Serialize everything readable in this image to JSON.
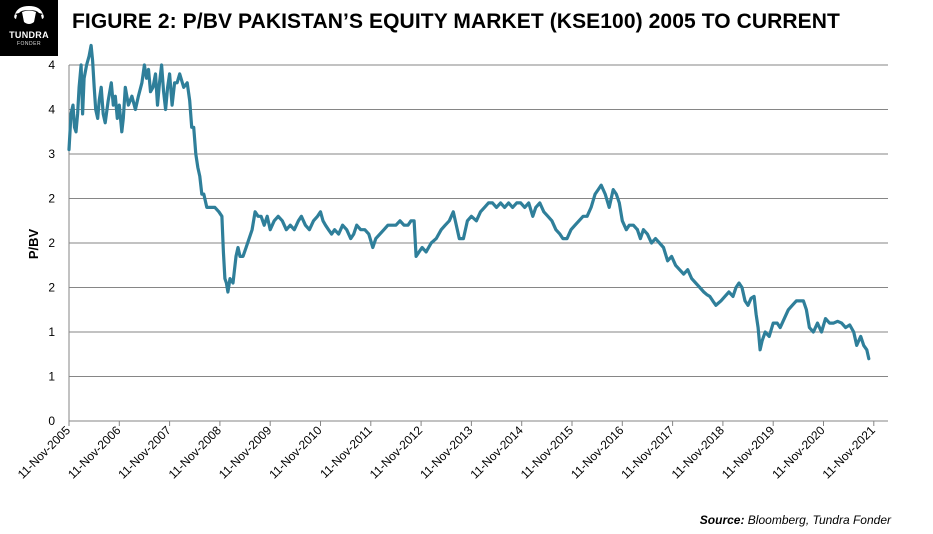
{
  "header": {
    "logo_text": "TUNDRA",
    "logo_subtext": "FONDER",
    "title": "FIGURE 2: P/BV PAKISTAN’S EQUITY MARKET (KSE100) 2005 TO CURRENT"
  },
  "source": {
    "label": "Source:",
    "text": " Bloomberg, Tundra Fonder"
  },
  "colors": {
    "line": "#2f7f9a",
    "grid": "#868686",
    "axis": "#868686",
    "text": "#000000"
  },
  "chart_data": {
    "type": "line",
    "title": "",
    "ylabel": "P/BV",
    "xlabel": "",
    "grid": true,
    "legend": "none",
    "y_tick_labels": [
      "0",
      "1",
      "1",
      "2",
      "2",
      "2",
      "3",
      "4",
      "4"
    ],
    "ylim": [
      0,
      4
    ],
    "x_tick_labels": [
      "11-Nov-2005",
      "11-Nov-2006",
      "11-Nov-2007",
      "11-Nov-2008",
      "11-Nov-2009",
      "11-Nov-2010",
      "11-Nov-2011",
      "11-Nov-2012",
      "11-Nov-2013",
      "11-Nov-2014",
      "11-Nov-2015",
      "11-Nov-2016",
      "11-Nov-2017",
      "11-Nov-2018",
      "11-Nov-2019",
      "11-Nov-2020",
      "11-Nov-2021"
    ],
    "x_unit": "years since 11-Nov-2005",
    "series": [
      {
        "values": [
          [
            0.0,
            3.05
          ],
          [
            0.04,
            3.45
          ],
          [
            0.08,
            3.55
          ],
          [
            0.11,
            3.3
          ],
          [
            0.14,
            3.25
          ],
          [
            0.17,
            3.45
          ],
          [
            0.2,
            3.75
          ],
          [
            0.24,
            4.0
          ],
          [
            0.27,
            3.45
          ],
          [
            0.3,
            3.85
          ],
          [
            0.35,
            4.0
          ],
          [
            0.4,
            4.1
          ],
          [
            0.44,
            4.22
          ],
          [
            0.47,
            4.05
          ],
          [
            0.5,
            3.75
          ],
          [
            0.53,
            3.5
          ],
          [
            0.57,
            3.4
          ],
          [
            0.6,
            3.6
          ],
          [
            0.64,
            3.75
          ],
          [
            0.68,
            3.45
          ],
          [
            0.72,
            3.35
          ],
          [
            0.78,
            3.6
          ],
          [
            0.84,
            3.8
          ],
          [
            0.88,
            3.55
          ],
          [
            0.92,
            3.65
          ],
          [
            0.96,
            3.4
          ],
          [
            1.0,
            3.55
          ],
          [
            1.05,
            3.25
          ],
          [
            1.08,
            3.4
          ],
          [
            1.12,
            3.75
          ],
          [
            1.18,
            3.55
          ],
          [
            1.25,
            3.65
          ],
          [
            1.32,
            3.5
          ],
          [
            1.38,
            3.65
          ],
          [
            1.45,
            3.8
          ],
          [
            1.5,
            4.0
          ],
          [
            1.54,
            3.85
          ],
          [
            1.58,
            3.95
          ],
          [
            1.62,
            3.7
          ],
          [
            1.67,
            3.75
          ],
          [
            1.72,
            3.9
          ],
          [
            1.76,
            3.55
          ],
          [
            1.8,
            3.8
          ],
          [
            1.84,
            4.0
          ],
          [
            1.88,
            3.7
          ],
          [
            1.92,
            3.5
          ],
          [
            1.96,
            3.75
          ],
          [
            2.0,
            3.9
          ],
          [
            2.05,
            3.55
          ],
          [
            2.1,
            3.8
          ],
          [
            2.15,
            3.8
          ],
          [
            2.2,
            3.9
          ],
          [
            2.28,
            3.75
          ],
          [
            2.35,
            3.8
          ],
          [
            2.4,
            3.6
          ],
          [
            2.44,
            3.3
          ],
          [
            2.48,
            3.3
          ],
          [
            2.52,
            3.0
          ],
          [
            2.56,
            2.85
          ],
          [
            2.6,
            2.75
          ],
          [
            2.64,
            2.55
          ],
          [
            2.68,
            2.55
          ],
          [
            2.74,
            2.4
          ],
          [
            2.8,
            2.4
          ],
          [
            2.9,
            2.4
          ],
          [
            2.98,
            2.35
          ],
          [
            3.04,
            2.3
          ],
          [
            3.07,
            1.9
          ],
          [
            3.1,
            1.6
          ],
          [
            3.13,
            1.55
          ],
          [
            3.16,
            1.45
          ],
          [
            3.2,
            1.6
          ],
          [
            3.26,
            1.55
          ],
          [
            3.32,
            1.85
          ],
          [
            3.36,
            1.95
          ],
          [
            3.4,
            1.85
          ],
          [
            3.46,
            1.85
          ],
          [
            3.52,
            1.95
          ],
          [
            3.58,
            2.05
          ],
          [
            3.64,
            2.15
          ],
          [
            3.7,
            2.35
          ],
          [
            3.76,
            2.3
          ],
          [
            3.82,
            2.3
          ],
          [
            3.88,
            2.2
          ],
          [
            3.94,
            2.3
          ],
          [
            4.0,
            2.15
          ],
          [
            4.08,
            2.25
          ],
          [
            4.16,
            2.3
          ],
          [
            4.24,
            2.25
          ],
          [
            4.32,
            2.15
          ],
          [
            4.4,
            2.2
          ],
          [
            4.48,
            2.15
          ],
          [
            4.56,
            2.25
          ],
          [
            4.62,
            2.3
          ],
          [
            4.7,
            2.2
          ],
          [
            4.78,
            2.15
          ],
          [
            4.86,
            2.25
          ],
          [
            4.94,
            2.3
          ],
          [
            5.0,
            2.35
          ],
          [
            5.05,
            2.25
          ],
          [
            5.1,
            2.2
          ],
          [
            5.16,
            2.15
          ],
          [
            5.22,
            2.1
          ],
          [
            5.28,
            2.15
          ],
          [
            5.36,
            2.1
          ],
          [
            5.44,
            2.2
          ],
          [
            5.52,
            2.15
          ],
          [
            5.6,
            2.05
          ],
          [
            5.66,
            2.1
          ],
          [
            5.72,
            2.2
          ],
          [
            5.8,
            2.15
          ],
          [
            5.88,
            2.15
          ],
          [
            5.96,
            2.1
          ],
          [
            6.04,
            1.95
          ],
          [
            6.1,
            2.05
          ],
          [
            6.18,
            2.1
          ],
          [
            6.26,
            2.15
          ],
          [
            6.34,
            2.2
          ],
          [
            6.42,
            2.2
          ],
          [
            6.5,
            2.2
          ],
          [
            6.58,
            2.25
          ],
          [
            6.66,
            2.2
          ],
          [
            6.74,
            2.2
          ],
          [
            6.8,
            2.25
          ],
          [
            6.86,
            2.25
          ],
          [
            6.9,
            1.85
          ],
          [
            6.96,
            1.9
          ],
          [
            7.02,
            1.95
          ],
          [
            7.1,
            1.9
          ],
          [
            7.2,
            2.0
          ],
          [
            7.3,
            2.05
          ],
          [
            7.4,
            2.15
          ],
          [
            7.48,
            2.2
          ],
          [
            7.56,
            2.25
          ],
          [
            7.64,
            2.35
          ],
          [
            7.7,
            2.2
          ],
          [
            7.76,
            2.05
          ],
          [
            7.84,
            2.05
          ],
          [
            7.92,
            2.25
          ],
          [
            8.0,
            2.3
          ],
          [
            8.1,
            2.25
          ],
          [
            8.18,
            2.35
          ],
          [
            8.26,
            2.4
          ],
          [
            8.34,
            2.45
          ],
          [
            8.42,
            2.45
          ],
          [
            8.5,
            2.4
          ],
          [
            8.58,
            2.45
          ],
          [
            8.66,
            2.4
          ],
          [
            8.74,
            2.45
          ],
          [
            8.82,
            2.4
          ],
          [
            8.9,
            2.45
          ],
          [
            8.98,
            2.45
          ],
          [
            9.06,
            2.4
          ],
          [
            9.14,
            2.45
          ],
          [
            9.22,
            2.3
          ],
          [
            9.28,
            2.4
          ],
          [
            9.36,
            2.45
          ],
          [
            9.44,
            2.35
          ],
          [
            9.52,
            2.3
          ],
          [
            9.6,
            2.25
          ],
          [
            9.68,
            2.15
          ],
          [
            9.76,
            2.1
          ],
          [
            9.82,
            2.05
          ],
          [
            9.9,
            2.05
          ],
          [
            9.98,
            2.15
          ],
          [
            10.06,
            2.2
          ],
          [
            10.14,
            2.25
          ],
          [
            10.22,
            2.3
          ],
          [
            10.3,
            2.3
          ],
          [
            10.38,
            2.4
          ],
          [
            10.46,
            2.55
          ],
          [
            10.52,
            2.6
          ],
          [
            10.58,
            2.65
          ],
          [
            10.66,
            2.55
          ],
          [
            10.74,
            2.4
          ],
          [
            10.82,
            2.6
          ],
          [
            10.88,
            2.55
          ],
          [
            10.94,
            2.45
          ],
          [
            11.0,
            2.25
          ],
          [
            11.08,
            2.15
          ],
          [
            11.14,
            2.2
          ],
          [
            11.22,
            2.2
          ],
          [
            11.3,
            2.15
          ]
        ]
      },
      {
        "values": [
          [
            11.3,
            2.15
          ],
          [
            11.36,
            2.05
          ],
          [
            11.42,
            2.15
          ],
          [
            11.5,
            2.1
          ],
          [
            11.58,
            2.0
          ],
          [
            11.66,
            2.05
          ],
          [
            11.74,
            2.0
          ],
          [
            11.82,
            1.95
          ],
          [
            11.9,
            1.8
          ],
          [
            11.98,
            1.85
          ],
          [
            12.06,
            1.75
          ],
          [
            12.14,
            1.7
          ],
          [
            12.22,
            1.65
          ],
          [
            12.3,
            1.7
          ],
          [
            12.38,
            1.6
          ],
          [
            12.46,
            1.55
          ],
          [
            12.54,
            1.5
          ],
          [
            12.62,
            1.45
          ],
          [
            12.68,
            1.42
          ],
          [
            12.74,
            1.4
          ],
          [
            12.8,
            1.35
          ],
          [
            12.86,
            1.3
          ],
          [
            12.9,
            1.32
          ],
          [
            12.96,
            1.35
          ],
          [
            13.04,
            1.4
          ],
          [
            13.12,
            1.45
          ],
          [
            13.2,
            1.4
          ],
          [
            13.26,
            1.5
          ],
          [
            13.32,
            1.55
          ],
          [
            13.38,
            1.5
          ],
          [
            13.44,
            1.35
          ],
          [
            13.5,
            1.3
          ],
          [
            13.56,
            1.38
          ],
          [
            13.62,
            1.4
          ],
          [
            13.66,
            1.2
          ],
          [
            13.7,
            1.05
          ],
          [
            13.74,
            0.8
          ],
          [
            13.78,
            0.9
          ],
          [
            13.84,
            1.0
          ],
          [
            13.92,
            0.95
          ],
          [
            14.0,
            1.1
          ],
          [
            14.08,
            1.1
          ],
          [
            14.14,
            1.05
          ],
          [
            14.22,
            1.15
          ],
          [
            14.3,
            1.25
          ],
          [
            14.38,
            1.3
          ],
          [
            14.46,
            1.35
          ],
          [
            14.54,
            1.35
          ],
          [
            14.6,
            1.35
          ],
          [
            14.66,
            1.25
          ],
          [
            14.72,
            1.05
          ],
          [
            14.8,
            1.0
          ],
          [
            14.88,
            1.1
          ],
          [
            14.96,
            1.0
          ],
          [
            15.04,
            1.15
          ],
          [
            15.12,
            1.1
          ],
          [
            15.2,
            1.1
          ],
          [
            15.28,
            1.12
          ],
          [
            15.36,
            1.1
          ],
          [
            15.44,
            1.05
          ],
          [
            15.52,
            1.08
          ],
          [
            15.6,
            1.0
          ],
          [
            15.66,
            0.85
          ],
          [
            15.74,
            0.95
          ],
          [
            15.8,
            0.85
          ],
          [
            15.86,
            0.8
          ],
          [
            15.9,
            0.7
          ]
        ]
      }
    ]
  }
}
